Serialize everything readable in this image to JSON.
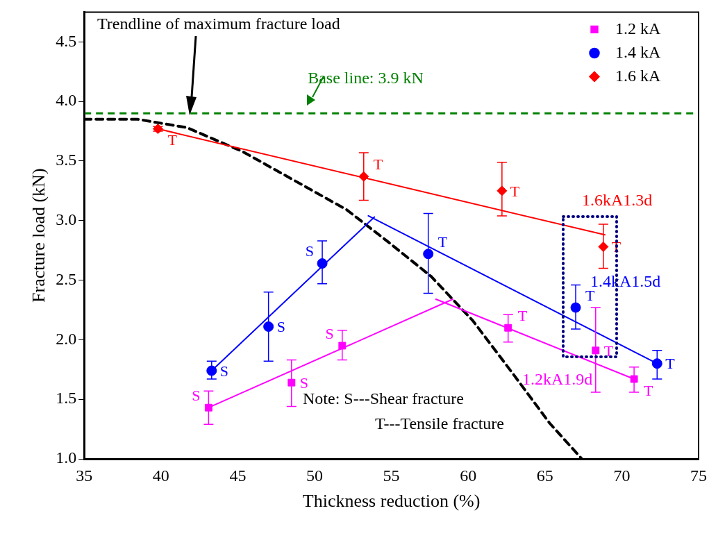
{
  "chart_data": {
    "type": "scatter",
    "xlabel": "Thickness reduction (%)",
    "ylabel": "Fracture load (kN)",
    "xlim": [
      35,
      75
    ],
    "xticks": [
      35,
      40,
      45,
      50,
      55,
      60,
      65,
      70,
      75
    ],
    "ylim": [
      1,
      4.75
    ],
    "yticks": [
      {
        "value": 1,
        "label": "1.0"
      },
      {
        "value": 1.5,
        "label": "1.5"
      },
      {
        "value": 2,
        "label": "2.0"
      },
      {
        "value": 2.5,
        "label": "2.5"
      },
      {
        "value": 3,
        "label": "3.0"
      },
      {
        "value": 3.5,
        "label": "3.5"
      },
      {
        "value": 4,
        "label": "4.0"
      },
      {
        "value": 4.5,
        "label": "4.5"
      }
    ],
    "grid": false,
    "legend": "top right",
    "series": [
      {
        "name": "1.2 kA",
        "color": "#ff00ff",
        "marker": "square",
        "x": [
          43.1,
          48.5,
          51.8,
          62.6,
          68.3,
          70.8
        ],
        "values": [
          1.43,
          1.64,
          1.95,
          2.1,
          1.91,
          1.67
        ],
        "errors": [
          [
            1.29,
            1.57
          ],
          [
            1.44,
            1.83
          ],
          [
            1.83,
            2.08
          ],
          [
            1.98,
            2.21
          ],
          [
            1.56,
            2.27
          ],
          [
            1.56,
            1.77
          ]
        ],
        "value_labels": [
          "S",
          "S",
          "S",
          "T",
          "T",
          "T"
        ]
      },
      {
        "name": "1.4 kA",
        "color": "#0000ff",
        "marker": "circle",
        "x": [
          43.3,
          47,
          50.5,
          57.4,
          67,
          72.3
        ],
        "values": [
          1.74,
          2.11,
          2.64,
          2.72,
          2.27,
          1.8
        ],
        "errors": [
          [
            1.67,
            1.82
          ],
          [
            1.82,
            2.4
          ],
          [
            2.47,
            2.83
          ],
          [
            2.39,
            3.06
          ],
          [
            2.09,
            2.46
          ],
          [
            1.67,
            1.91
          ]
        ],
        "value_labels": [
          "S",
          "S",
          "S",
          "T",
          "T",
          "T"
        ]
      },
      {
        "name": "1.6 kA",
        "color": "#ff0000",
        "marker": "diamond",
        "x": [
          39.8,
          53.2,
          62.2,
          68.8
        ],
        "values": [
          3.77,
          3.37,
          3.25,
          2.78
        ],
        "errors": [
          [
            3.75,
            3.79
          ],
          [
            3.17,
            3.57
          ],
          [
            3.04,
            3.49
          ],
          [
            2.6,
            2.97
          ]
        ],
        "value_labels": [
          "T",
          "T",
          "T",
          "T"
        ]
      },
      {
        "type": "line",
        "color": "#ff00ff",
        "marker": "none",
        "x": [
          43.1,
          59
        ],
        "values": [
          1.43,
          2.34
        ]
      },
      {
        "type": "line",
        "color": "#ff00ff",
        "marker": "none",
        "x": [
          57.9,
          70.8
        ],
        "values": [
          2.34,
          1.67
        ]
      },
      {
        "type": "line",
        "color": "#0000ff",
        "marker": "none",
        "x": [
          43.3,
          53.9
        ],
        "values": [
          1.74,
          3.03
        ]
      },
      {
        "type": "line",
        "color": "#0000ff",
        "marker": "none",
        "x": [
          53.5,
          72.3
        ],
        "values": [
          3.04,
          1.8
        ]
      },
      {
        "type": "line",
        "color": "#ff0000",
        "marker": "none",
        "x": [
          39.8,
          68.9
        ],
        "values": [
          3.77,
          2.88
        ]
      },
      {
        "type": "line",
        "color": "#000000",
        "marker": "none",
        "line_style": "dashed",
        "x": [
          35,
          38.5,
          41.7,
          45.3,
          48.5,
          52.1,
          54.8,
          57.6,
          60.3,
          63,
          65.3,
          67.4
        ],
        "values": [
          3.85,
          3.85,
          3.78,
          3.58,
          3.35,
          3.09,
          2.82,
          2.53,
          2.16,
          1.7,
          1.3,
          1
        ]
      }
    ],
    "ref_lines": [
      {
        "axis": "y",
        "value": 3.9,
        "label": "Base line: 3.9 kN",
        "color": "#008000",
        "line_style": "dashed"
      }
    ],
    "annotations": [
      "Trendline of maximum fracture load",
      "1.6kA1.3d",
      "1.4kA1.5d",
      "1.2kA1.9d",
      "Note: S---Shear fracture",
      "T---Tensile fracture"
    ]
  }
}
